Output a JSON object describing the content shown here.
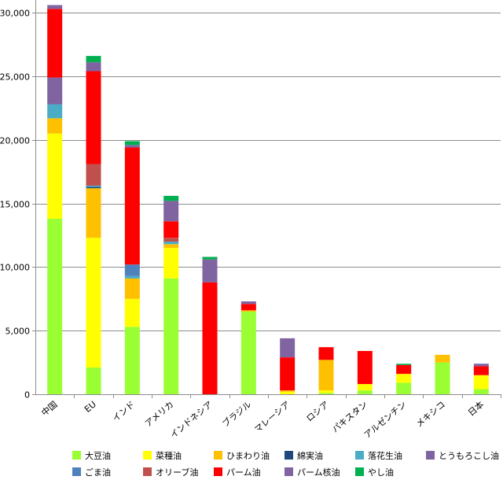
{
  "chart_data": {
    "type": "bar",
    "stacked": true,
    "categories": [
      "中国",
      "EU",
      "インド",
      "アメリカ",
      "インドネシア",
      "ブラジル",
      "マレーシア",
      "ロシア",
      "パキスタン",
      "アルゼンチン",
      "メキシコ",
      "日本"
    ],
    "ylim": [
      0,
      31000
    ],
    "yticks": [
      0,
      5000,
      10000,
      15000,
      20000,
      25000,
      30000
    ],
    "ytick_labels": [
      "0",
      "5,000",
      "10,000",
      "15,000",
      "20,000",
      "25,000",
      "30,000"
    ],
    "grid": true,
    "legend_position": "bottom",
    "series": [
      {
        "name": "大豆油",
        "color": "#99ff33",
        "values": [
          13800,
          2100,
          5300,
          9100,
          0,
          6500,
          0,
          100,
          300,
          900,
          2500,
          400
        ]
      },
      {
        "name": "菜種油",
        "color": "#ffff00",
        "values": [
          6700,
          10200,
          2200,
          2400,
          0,
          0,
          200,
          200,
          500,
          700,
          0,
          1100
        ]
      },
      {
        "name": "ひまわり油",
        "color": "#ffc000",
        "values": [
          1200,
          3900,
          1600,
          300,
          0,
          100,
          100,
          2400,
          0,
          0,
          600,
          0
        ]
      },
      {
        "name": "綿実油",
        "color": "#1f497d",
        "values": [
          0,
          100,
          0,
          0,
          0,
          0,
          0,
          0,
          0,
          0,
          0,
          0
        ]
      },
      {
        "name": "落花生油",
        "color": "#4bacc6",
        "values": [
          1100,
          100,
          200,
          200,
          0,
          0,
          0,
          0,
          0,
          0,
          0,
          0
        ]
      },
      {
        "name": "とうもろこし油",
        "color": "#8064a2",
        "values": [
          2100,
          0,
          0,
          0,
          0,
          0,
          0,
          0,
          0,
          0,
          0,
          0
        ]
      },
      {
        "name": "ごま油",
        "color": "#4f81bd",
        "values": [
          0,
          0,
          900,
          0,
          0,
          0,
          0,
          0,
          0,
          0,
          0,
          0
        ]
      },
      {
        "name": "オリーブ油",
        "color": "#c0504d",
        "values": [
          0,
          1700,
          0,
          300,
          0,
          0,
          0,
          0,
          0,
          0,
          0,
          0
        ]
      },
      {
        "name": "パーム油",
        "color": "#ff0000",
        "values": [
          5400,
          7300,
          9200,
          1300,
          8800,
          500,
          2600,
          1000,
          2600,
          700,
          0,
          700
        ]
      },
      {
        "name": "パーム核油",
        "color": "#8064a2",
        "values": [
          300,
          700,
          200,
          1600,
          1800,
          200,
          1500,
          0,
          0,
          0,
          0,
          200
        ]
      },
      {
        "name": "やし油",
        "color": "#00b050",
        "values": [
          0,
          500,
          300,
          400,
          200,
          0,
          0,
          0,
          0,
          100,
          0,
          0
        ]
      }
    ]
  }
}
